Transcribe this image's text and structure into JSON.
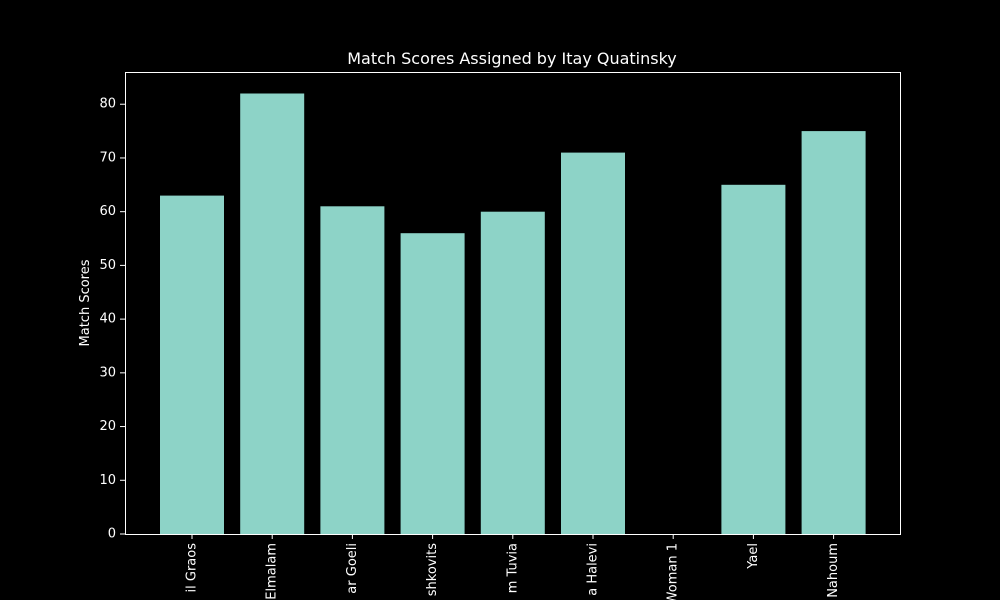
{
  "chart_data": {
    "type": "bar",
    "title": "Match Scores Assigned by Itay Quatinsky",
    "xlabel": "",
    "ylabel": "Match Scores",
    "categories": [
      "il Graos",
      "Elmalam",
      "ar Goeli",
      "shkovits",
      "m Tuvia",
      "a Halevi",
      "Woman 1",
      "Yael",
      "Nahoum"
    ],
    "values": [
      63,
      82,
      61,
      56,
      60,
      71,
      0,
      65,
      75
    ],
    "ylim": [
      0,
      86
    ],
    "yticks": [
      0,
      10,
      20,
      30,
      40,
      50,
      60,
      70,
      80
    ],
    "grid": false,
    "legend": "none",
    "colors": {
      "background": "#000000",
      "bar": "#8dd3c7",
      "axes": "#ffffff",
      "text": "#ffffff"
    }
  }
}
